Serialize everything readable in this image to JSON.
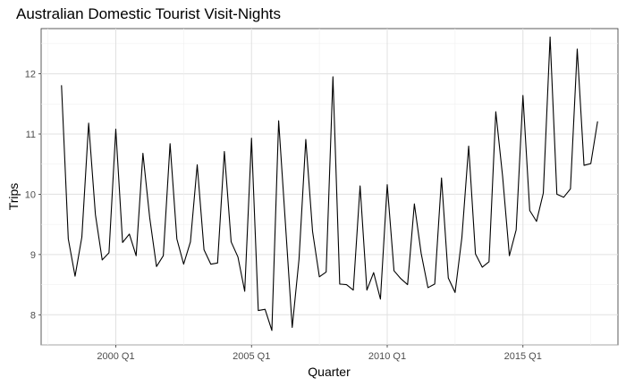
{
  "chart_data": {
    "type": "line",
    "title": "Australian Domestic Tourist Visit-Nights",
    "xlabel": "Quarter",
    "ylabel": "Trips",
    "x_tick_labels": [
      "2000 Q1",
      "2005 Q1",
      "2010 Q1",
      "2015 Q1"
    ],
    "x_tick_years": [
      2000,
      2005,
      2010,
      2015
    ],
    "y_tick_labels": [
      "8",
      "9",
      "10",
      "11",
      "12"
    ],
    "y_ticks": [
      8,
      9,
      10,
      11,
      12
    ],
    "xlim": [
      "1997 Q2",
      "2018 Q3"
    ],
    "ylim": [
      7.5,
      12.75
    ],
    "grid": true,
    "line_color": "#000000",
    "series": [
      {
        "x": [
          "1998 Q1",
          "1998 Q2",
          "1998 Q3",
          "1998 Q4",
          "1999 Q1",
          "1999 Q2",
          "1999 Q3",
          "1999 Q4",
          "2000 Q1",
          "2000 Q2",
          "2000 Q3",
          "2000 Q4",
          "2001 Q1",
          "2001 Q2",
          "2001 Q3",
          "2001 Q4",
          "2002 Q1",
          "2002 Q2",
          "2002 Q3",
          "2002 Q4",
          "2003 Q1",
          "2003 Q2",
          "2003 Q3",
          "2003 Q4",
          "2004 Q1",
          "2004 Q2",
          "2004 Q3",
          "2004 Q4",
          "2005 Q1",
          "2005 Q2",
          "2005 Q3",
          "2005 Q4",
          "2006 Q1",
          "2006 Q2",
          "2006 Q3",
          "2006 Q4",
          "2007 Q1",
          "2007 Q2",
          "2007 Q3",
          "2007 Q4",
          "2008 Q1",
          "2008 Q2",
          "2008 Q3",
          "2008 Q4",
          "2009 Q1",
          "2009 Q2",
          "2009 Q3",
          "2009 Q4",
          "2010 Q1",
          "2010 Q2",
          "2010 Q3",
          "2010 Q4",
          "2011 Q1",
          "2011 Q2",
          "2011 Q3",
          "2011 Q4",
          "2012 Q1",
          "2012 Q2",
          "2012 Q3",
          "2012 Q4",
          "2013 Q1",
          "2013 Q2",
          "2013 Q3",
          "2013 Q4",
          "2014 Q1",
          "2014 Q2",
          "2014 Q3",
          "2014 Q4",
          "2015 Q1",
          "2015 Q2",
          "2015 Q3",
          "2015 Q4",
          "2016 Q1",
          "2016 Q2",
          "2016 Q3",
          "2016 Q4",
          "2017 Q1",
          "2017 Q2",
          "2017 Q3",
          "2017 Q4"
        ],
        "values": [
          11.81,
          9.26,
          8.64,
          9.29,
          11.18,
          9.66,
          8.91,
          9.03,
          11.08,
          9.2,
          9.34,
          8.98,
          10.68,
          9.61,
          8.8,
          8.98,
          10.84,
          9.26,
          8.84,
          9.21,
          10.49,
          9.08,
          8.84,
          8.86,
          10.71,
          9.21,
          8.96,
          8.39,
          10.93,
          8.07,
          8.09,
          7.74,
          11.22,
          9.51,
          7.79,
          8.92,
          10.91,
          9.38,
          8.63,
          8.71,
          11.95,
          8.51,
          8.5,
          8.41,
          10.14,
          8.41,
          8.7,
          8.26,
          10.16,
          8.73,
          8.6,
          8.5,
          9.84,
          9.02,
          8.45,
          8.51,
          10.27,
          8.61,
          8.37,
          9.28,
          10.8,
          9.01,
          8.79,
          8.88,
          11.37,
          10.3,
          8.98,
          9.41,
          11.64,
          9.73,
          9.55,
          10.02,
          12.61,
          10.0,
          9.95,
          10.09,
          12.41,
          10.48,
          10.51,
          11.21
        ]
      }
    ]
  }
}
